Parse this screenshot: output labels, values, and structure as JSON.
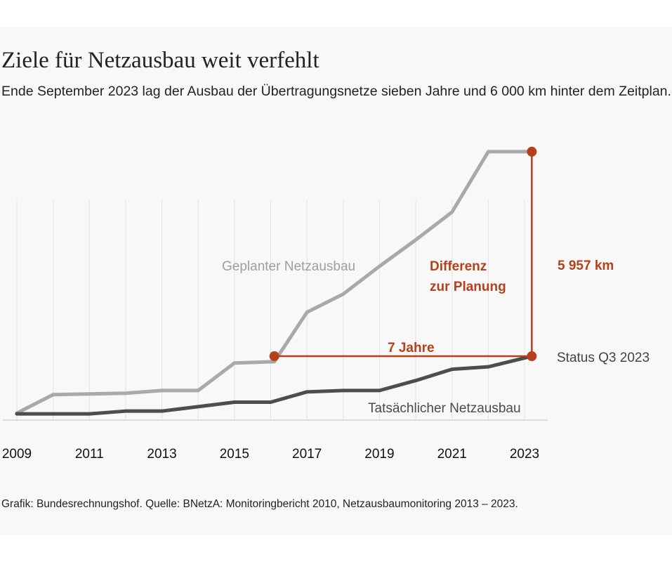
{
  "title": "Ziele für Netzausbau weit verfehlt",
  "subtitle": "Ende September 2023 lag der Ausbau der Übertragungsnetze sieben Jahre und 6 000 km hinter dem Zeitplan.",
  "source": "Grafik: Bundesrechnungshof. Quelle: BNetzA: Monitoringbericht 2010, Netzausbaumonitoring 2013 – 2023.",
  "colors": {
    "planned": "#a9a9a9",
    "actual": "#4d4d4d",
    "accent": "#b5401b",
    "grid": "#e3e3e3",
    "background": "#f7f8f7"
  },
  "chart_data": {
    "type": "line",
    "xlim": [
      2009,
      2023.6
    ],
    "ylim": [
      0,
      7800
    ],
    "x_ticks": [
      "2009",
      "2011",
      "2013",
      "2015",
      "2017",
      "2019",
      "2021",
      "2023"
    ],
    "series": [
      {
        "name": "Geplanter Netzausbau",
        "label": "Geplanter Netzausbau",
        "color": "#a9a9a9",
        "x": [
          2009,
          2010,
          2011,
          2012,
          2013,
          2014,
          2015,
          2016.1,
          2017,
          2018,
          2019,
          2020,
          2021,
          2022,
          2023.2
        ],
        "y": [
          100,
          640,
          660,
          680,
          760,
          760,
          1560,
          1600,
          3040,
          3570,
          4380,
          5150,
          5960,
          7720,
          7720
        ]
      },
      {
        "name": "Tatsächlicher Netzausbau",
        "label": "Tatsächlicher Netzausbau",
        "color": "#4d4d4d",
        "x": [
          2009,
          2010,
          2011,
          2012,
          2013,
          2014,
          2015,
          2016,
          2017,
          2018,
          2019,
          2020,
          2021,
          2022,
          2023.2
        ],
        "y": [
          80,
          80,
          80,
          160,
          160,
          290,
          420,
          420,
          720,
          760,
          760,
          1050,
          1380,
          1450,
          1760
        ]
      }
    ],
    "annotations": {
      "delay_label": "7 Jahre",
      "delay_from": {
        "x": 2016.1,
        "y": 1760
      },
      "delay_to": {
        "x": 2023.2,
        "y": 1760
      },
      "gap_label_line1": "Differenz",
      "gap_label_line2": "zur Planung",
      "gap_value_label": "5 957 km",
      "gap_top": {
        "x": 2023.2,
        "y": 7720
      },
      "gap_bottom": {
        "x": 2023.2,
        "y": 1760
      },
      "status_label": "Status Q3 2023"
    }
  }
}
